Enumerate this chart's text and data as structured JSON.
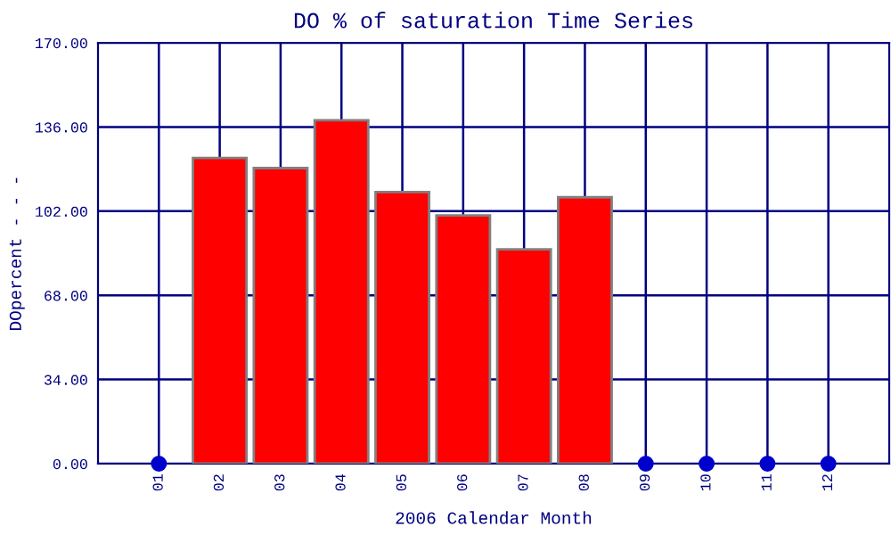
{
  "chart_data": {
    "type": "bar",
    "title": "DO % of saturation Time Series",
    "xlabel": "2006 Calendar Month",
    "ylabel": "DOpercent - - -",
    "categories": [
      "01",
      "02",
      "03",
      "04",
      "05",
      "06",
      "07",
      "08",
      "09",
      "10",
      "11",
      "12"
    ],
    "series": [
      {
        "color": "#ff0000",
        "values": [
          null,
          123.5,
          119.4,
          138.7,
          109.7,
          100.3,
          86.6,
          107.6,
          null,
          null,
          null,
          null
        ]
      },
      {
        "type": "scatter",
        "color": "#0000cc",
        "x": [
          "01",
          "09",
          "10",
          "11",
          "12"
        ],
        "values": [
          0,
          0,
          0,
          0,
          0
        ]
      }
    ],
    "ylim": [
      0,
      170
    ],
    "yticks": [
      {
        "value": 0,
        "label": "0.00"
      },
      {
        "value": 34,
        "label": "34.00"
      },
      {
        "value": 68,
        "label": "68.00"
      },
      {
        "value": 102,
        "label": "102.00"
      },
      {
        "value": 136,
        "label": "136.00"
      },
      {
        "value": 170,
        "label": "170.00"
      }
    ],
    "grid": true,
    "marker": "circle"
  }
}
